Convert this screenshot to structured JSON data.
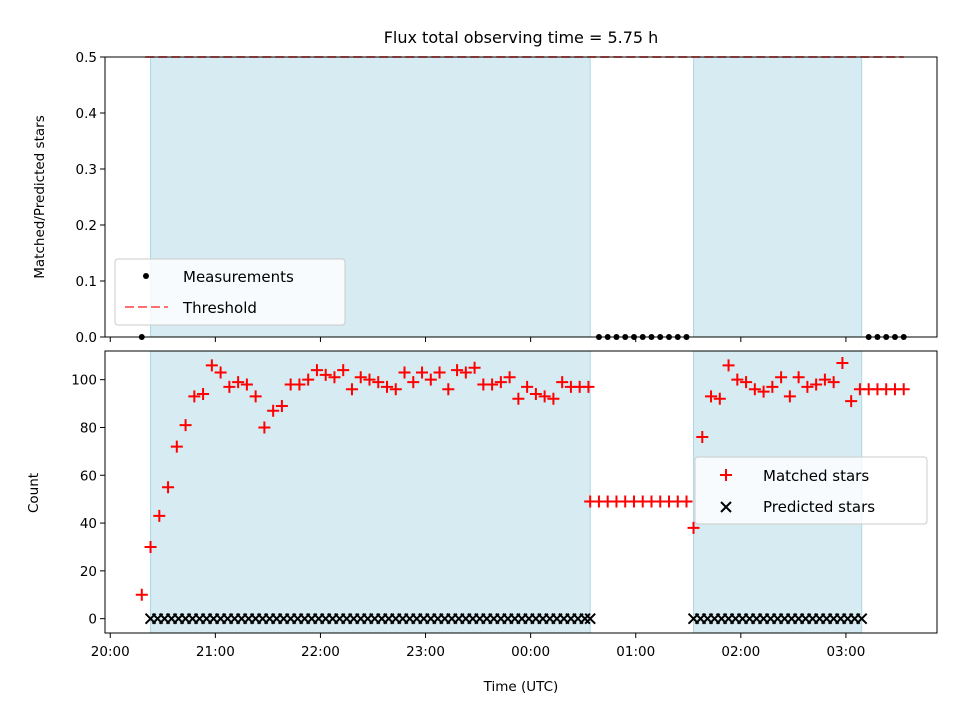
{
  "title": "Flux total observing time = 5.75 h",
  "colors": {
    "shade": "#add8e6",
    "matched": "#ff0000",
    "predicted": "#000000",
    "threshold": "#ff7070",
    "measurement": "#000000"
  },
  "chart_data": [
    {
      "type": "scatter",
      "ylabel": "Matched/Predicted stars",
      "ylim": [
        0,
        0.5
      ],
      "yticks": [
        "0.0",
        "0.1",
        "0.2",
        "0.3",
        "0.4",
        "0.5"
      ],
      "xlim": [
        "19:57",
        "03:52"
      ],
      "shaded_intervals": [
        [
          "20:23",
          "00:34"
        ],
        [
          "01:33",
          "03:09"
        ]
      ],
      "threshold": {
        "value": 0.5,
        "from": "20:20",
        "to": "03:33"
      },
      "legend": {
        "placement": "lower-left",
        "entries": [
          "Measurements",
          "Threshold"
        ]
      },
      "series": [
        {
          "name": "Measurements",
          "marker": "dot",
          "x": [
            "20:18",
            "00:39",
            "00:44",
            "00:49",
            "00:54",
            "00:59",
            "01:04",
            "01:09",
            "01:14",
            "01:19",
            "01:24",
            "01:29",
            "03:13",
            "03:18",
            "03:23",
            "03:28",
            "03:33"
          ],
          "y": [
            0,
            0,
            0,
            0,
            0,
            0,
            0,
            0,
            0,
            0,
            0,
            0,
            0,
            0,
            0,
            0,
            0
          ]
        }
      ]
    },
    {
      "type": "scatter",
      "ylabel": "Count",
      "xlabel": "Time (UTC)",
      "ylim": [
        -6,
        112
      ],
      "yticks": [
        "0",
        "20",
        "40",
        "60",
        "80",
        "100"
      ],
      "xticks": [
        "20:00",
        "21:00",
        "22:00",
        "23:00",
        "00:00",
        "01:00",
        "02:00",
        "03:00"
      ],
      "xlim": [
        "19:57",
        "03:52"
      ],
      "shaded_intervals": [
        [
          "20:23",
          "00:34"
        ],
        [
          "01:33",
          "03:09"
        ]
      ],
      "legend": {
        "placement": "center-right",
        "entries": [
          "Matched stars",
          "Predicted stars"
        ]
      },
      "series": [
        {
          "name": "Matched stars",
          "marker": "plus",
          "x": [
            "20:18",
            "20:23",
            "20:28",
            "20:33",
            "20:38",
            "20:43",
            "20:48",
            "20:53",
            "20:58",
            "21:03",
            "21:08",
            "21:13",
            "21:18",
            "21:23",
            "21:28",
            "21:33",
            "21:38",
            "21:43",
            "21:48",
            "21:53",
            "21:58",
            "22:03",
            "22:08",
            "22:13",
            "22:18",
            "22:23",
            "22:28",
            "22:33",
            "22:38",
            "22:43",
            "22:48",
            "22:53",
            "22:58",
            "23:03",
            "23:08",
            "23:13",
            "23:18",
            "23:23",
            "23:28",
            "23:33",
            "23:38",
            "23:43",
            "23:48",
            "23:53",
            "23:58",
            "00:03",
            "00:08",
            "00:13",
            "00:18",
            "00:23",
            "00:28",
            "00:33",
            "00:34",
            "00:39",
            "00:44",
            "00:49",
            "00:54",
            "00:59",
            "01:04",
            "01:09",
            "01:14",
            "01:19",
            "01:24",
            "01:29",
            "01:33",
            "01:38",
            "01:43",
            "01:48",
            "01:53",
            "01:58",
            "02:03",
            "02:08",
            "02:13",
            "02:18",
            "02:23",
            "02:28",
            "02:33",
            "02:38",
            "02:43",
            "02:48",
            "02:53",
            "02:58",
            "03:03",
            "03:08",
            "03:13",
            "03:18",
            "03:23",
            "03:28",
            "03:33"
          ],
          "y": [
            10,
            30,
            43,
            55,
            72,
            81,
            93,
            94,
            106,
            103,
            97,
            99,
            98,
            93,
            80,
            87,
            89,
            98,
            98,
            100,
            104,
            102,
            101,
            104,
            96,
            101,
            100,
            99,
            97,
            96,
            103,
            99,
            103,
            100,
            103,
            96,
            104,
            103,
            105,
            98,
            98,
            99,
            101,
            92,
            97,
            94,
            93,
            92,
            99,
            97,
            97,
            97,
            49,
            49,
            49,
            49,
            49,
            49,
            49,
            49,
            49,
            49,
            49,
            49,
            38,
            76,
            93,
            92,
            106,
            100,
            99,
            96,
            95,
            97,
            101,
            93,
            101,
            97,
            98,
            100,
            99,
            107,
            91,
            96,
            96,
            96,
            96,
            96,
            96
          ]
        },
        {
          "name": "Predicted stars",
          "marker": "x",
          "x": [
            "20:23",
            "20:27",
            "20:31",
            "20:35",
            "20:39",
            "20:43",
            "20:47",
            "20:51",
            "20:55",
            "20:59",
            "21:03",
            "21:07",
            "21:11",
            "21:15",
            "21:19",
            "21:23",
            "21:27",
            "21:31",
            "21:35",
            "21:39",
            "21:43",
            "21:47",
            "21:51",
            "21:55",
            "21:59",
            "22:03",
            "22:07",
            "22:11",
            "22:15",
            "22:19",
            "22:23",
            "22:27",
            "22:31",
            "22:35",
            "22:39",
            "22:43",
            "22:47",
            "22:51",
            "22:55",
            "22:59",
            "23:03",
            "23:07",
            "23:11",
            "23:15",
            "23:19",
            "23:23",
            "23:27",
            "23:31",
            "23:35",
            "23:39",
            "23:43",
            "23:47",
            "23:51",
            "23:55",
            "23:59",
            "00:03",
            "00:07",
            "00:11",
            "00:15",
            "00:19",
            "00:23",
            "00:27",
            "00:31",
            "00:34",
            "01:33",
            "01:37",
            "01:41",
            "01:45",
            "01:49",
            "01:53",
            "01:57",
            "02:01",
            "02:05",
            "02:09",
            "02:13",
            "02:17",
            "02:21",
            "02:25",
            "02:29",
            "02:33",
            "02:37",
            "02:41",
            "02:45",
            "02:49",
            "02:53",
            "02:57",
            "03:01",
            "03:05",
            "03:09"
          ],
          "y": [
            0,
            0,
            0,
            0,
            0,
            0,
            0,
            0,
            0,
            0,
            0,
            0,
            0,
            0,
            0,
            0,
            0,
            0,
            0,
            0,
            0,
            0,
            0,
            0,
            0,
            0,
            0,
            0,
            0,
            0,
            0,
            0,
            0,
            0,
            0,
            0,
            0,
            0,
            0,
            0,
            0,
            0,
            0,
            0,
            0,
            0,
            0,
            0,
            0,
            0,
            0,
            0,
            0,
            0,
            0,
            0,
            0,
            0,
            0,
            0,
            0,
            0,
            0,
            0,
            0,
            0,
            0,
            0,
            0,
            0,
            0,
            0,
            0,
            0,
            0,
            0,
            0,
            0,
            0,
            0,
            0,
            0,
            0,
            0,
            0,
            0,
            0,
            0,
            0
          ]
        }
      ]
    }
  ]
}
